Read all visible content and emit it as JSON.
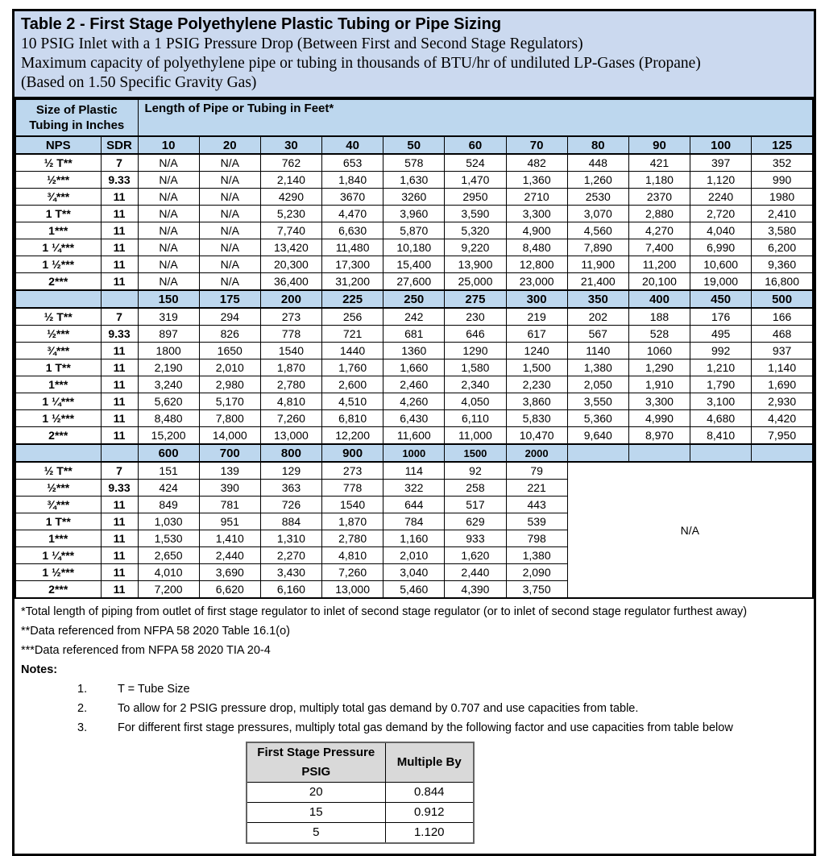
{
  "title_block": {
    "title": "Table 2 - First Stage Polyethylene Plastic Tubing or Pipe Sizing",
    "subtitles": [
      "10 PSIG Inlet with a 1 PSIG Pressure Drop (Between First and Second Stage Regulators)",
      "Maximum capacity of polyethylene pipe or tubing in thousands of BTU/hr of undiluted LP-Gases (Propane)",
      "(Based on 1.50 Specific Gravity Gas)"
    ]
  },
  "main_table": {
    "corner_header": "Size of Plastic Tubing in Inches",
    "length_header": "Length of Pipe or Tubing in Feet*",
    "nps_header": "NPS",
    "sdr_header": "SDR",
    "na_text": "N/A",
    "sections": [
      {
        "lengths": [
          "10",
          "20",
          "30",
          "40",
          "50",
          "60",
          "70",
          "80",
          "90",
          "100",
          "125"
        ],
        "rows": [
          {
            "nps": "½ T**",
            "sdr": "7",
            "values": [
              "N/A",
              "N/A",
              "762",
              "653",
              "578",
              "524",
              "482",
              "448",
              "421",
              "397",
              "352"
            ]
          },
          {
            "nps": "½***",
            "sdr": "9.33",
            "values": [
              "N/A",
              "N/A",
              "2,140",
              "1,840",
              "1,630",
              "1,470",
              "1,360",
              "1,260",
              "1,180",
              "1,120",
              "990"
            ]
          },
          {
            "nps": "¾***",
            "sdr": "11",
            "values": [
              "N/A",
              "N/A",
              "4290",
              "3670",
              "3260",
              "2950",
              "2710",
              "2530",
              "2370",
              "2240",
              "1980"
            ]
          },
          {
            "nps": "1 T**",
            "sdr": "11",
            "values": [
              "N/A",
              "N/A",
              "5,230",
              "4,470",
              "3,960",
              "3,590",
              "3,300",
              "3,070",
              "2,880",
              "2,720",
              "2,410"
            ]
          },
          {
            "nps": "1***",
            "sdr": "11",
            "values": [
              "N/A",
              "N/A",
              "7,740",
              "6,630",
              "5,870",
              "5,320",
              "4,900",
              "4,560",
              "4,270",
              "4,040",
              "3,580"
            ]
          },
          {
            "nps": "1 ¼***",
            "sdr": "11",
            "values": [
              "N/A",
              "N/A",
              "13,420",
              "11,480",
              "10,180",
              "9,220",
              "8,480",
              "7,890",
              "7,400",
              "6,990",
              "6,200"
            ]
          },
          {
            "nps": "1 ½***",
            "sdr": "11",
            "values": [
              "N/A",
              "N/A",
              "20,300",
              "17,300",
              "15,400",
              "13,900",
              "12,800",
              "11,900",
              "11,200",
              "10,600",
              "9,360"
            ]
          },
          {
            "nps": "2***",
            "sdr": "11",
            "values": [
              "N/A",
              "N/A",
              "36,400",
              "31,200",
              "27,600",
              "25,000",
              "23,000",
              "21,400",
              "20,100",
              "19,000",
              "16,800"
            ]
          }
        ]
      },
      {
        "lengths": [
          "150",
          "175",
          "200",
          "225",
          "250",
          "275",
          "300",
          "350",
          "400",
          "450",
          "500"
        ],
        "rows": [
          {
            "nps": "½ T**",
            "sdr": "7",
            "values": [
              "319",
              "294",
              "273",
              "256",
              "242",
              "230",
              "219",
              "202",
              "188",
              "176",
              "166"
            ]
          },
          {
            "nps": "½***",
            "sdr": "9.33",
            "values": [
              "897",
              "826",
              "778",
              "721",
              "681",
              "646",
              "617",
              "567",
              "528",
              "495",
              "468"
            ]
          },
          {
            "nps": "¾***",
            "sdr": "11",
            "values": [
              "1800",
              "1650",
              "1540",
              "1440",
              "1360",
              "1290",
              "1240",
              "1140",
              "1060",
              "992",
              "937"
            ]
          },
          {
            "nps": "1 T**",
            "sdr": "11",
            "values": [
              "2,190",
              "2,010",
              "1,870",
              "1,760",
              "1,660",
              "1,580",
              "1,500",
              "1,380",
              "1,290",
              "1,210",
              "1,140"
            ]
          },
          {
            "nps": "1***",
            "sdr": "11",
            "values": [
              "3,240",
              "2,980",
              "2,780",
              "2,600",
              "2,460",
              "2,340",
              "2,230",
              "2,050",
              "1,910",
              "1,790",
              "1,690"
            ]
          },
          {
            "nps": "1 ¼***",
            "sdr": "11",
            "values": [
              "5,620",
              "5,170",
              "4,810",
              "4,510",
              "4,260",
              "4,050",
              "3,860",
              "3,550",
              "3,300",
              "3,100",
              "2,930"
            ]
          },
          {
            "nps": "1 ½***",
            "sdr": "11",
            "values": [
              "8,480",
              "7,800",
              "7,260",
              "6,810",
              "6,430",
              "6,110",
              "5,830",
              "5,360",
              "4,990",
              "4,680",
              "4,420"
            ]
          },
          {
            "nps": "2***",
            "sdr": "11",
            "values": [
              "15,200",
              "14,000",
              "13,000",
              "12,200",
              "11,600",
              "11,000",
              "10,470",
              "9,640",
              "8,970",
              "8,410",
              "7,950"
            ]
          }
        ]
      },
      {
        "lengths": [
          "600",
          "700",
          "800",
          "900",
          "1000",
          "1500",
          "2000"
        ],
        "rows": [
          {
            "nps": "½ T**",
            "sdr": "7",
            "values": [
              "151",
              "139",
              "129",
              "273",
              "114",
              "92",
              "79"
            ]
          },
          {
            "nps": "½***",
            "sdr": "9.33",
            "values": [
              "424",
              "390",
              "363",
              "778",
              "322",
              "258",
              "221"
            ]
          },
          {
            "nps": "¾***",
            "sdr": "11",
            "values": [
              "849",
              "781",
              "726",
              "1540",
              "644",
              "517",
              "443"
            ]
          },
          {
            "nps": "1 T**",
            "sdr": "11",
            "values": [
              "1,030",
              "951",
              "884",
              "1,870",
              "784",
              "629",
              "539"
            ]
          },
          {
            "nps": "1***",
            "sdr": "11",
            "values": [
              "1,530",
              "1,410",
              "1,310",
              "2,780",
              "1,160",
              "933",
              "798"
            ]
          },
          {
            "nps": "1 ¼***",
            "sdr": "11",
            "values": [
              "2,650",
              "2,440",
              "2,270",
              "4,810",
              "2,010",
              "1,620",
              "1,380"
            ]
          },
          {
            "nps": "1 ½***",
            "sdr": "11",
            "values": [
              "4,010",
              "3,690",
              "3,430",
              "7,260",
              "3,040",
              "2,440",
              "2,090"
            ]
          },
          {
            "nps": "2***",
            "sdr": "11",
            "values": [
              "7,200",
              "6,620",
              "6,160",
              "13,000",
              "5,460",
              "4,390",
              "3,750"
            ]
          }
        ]
      }
    ]
  },
  "footnotes": [
    "*Total length of piping from outlet of first stage regulator to inlet of second stage regulator (or to inlet of second stage regulator furthest away)",
    "**Data referenced from NFPA 58 2020 Table 16.1(o)",
    "***Data referenced from NFPA 58 2020 TIA 20-4"
  ],
  "notes_label": "Notes:",
  "notes": [
    {
      "num": "1.",
      "text": "T = Tube Size"
    },
    {
      "num": "2.",
      "text": "To allow for 2 PSIG pressure drop, multiply total gas demand by 0.707 and use capacities from table."
    },
    {
      "num": "3.",
      "text": "For different first stage pressures, multiply total gas demand by the following factor and use capacities from table below"
    }
  ],
  "sub_table": {
    "headers": [
      "First Stage Pressure PSIG",
      "Multiple By"
    ],
    "rows": [
      [
        "20",
        "0.844"
      ],
      [
        "15",
        "0.912"
      ],
      [
        "5",
        "1.120"
      ]
    ]
  },
  "colors": {
    "title_bg": "#CBD9EF",
    "header_bg": "#BDD7EE",
    "subtable_header_bg": "#D9D9D9",
    "border": "#000000"
  }
}
